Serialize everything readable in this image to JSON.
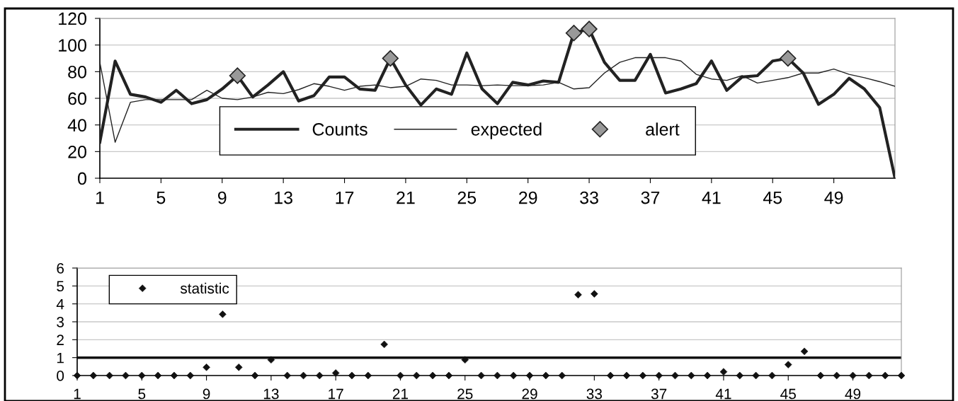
{
  "chart_data": [
    {
      "type": "line",
      "x": [
        1,
        2,
        3,
        4,
        5,
        6,
        7,
        8,
        9,
        10,
        11,
        12,
        13,
        14,
        15,
        16,
        17,
        18,
        19,
        20,
        21,
        22,
        23,
        24,
        25,
        26,
        27,
        28,
        29,
        30,
        31,
        32,
        33,
        34,
        35,
        36,
        37,
        38,
        39,
        40,
        41,
        42,
        43,
        44,
        45,
        46,
        47,
        48,
        49,
        50,
        51,
        52,
        53
      ],
      "xlim": [
        1,
        53
      ],
      "xticks": [
        1,
        5,
        9,
        13,
        17,
        21,
        25,
        29,
        33,
        37,
        41,
        45,
        49
      ],
      "ylim": [
        0,
        120
      ],
      "yticks": [
        0,
        20,
        40,
        60,
        80,
        100,
        120
      ],
      "grid": "y",
      "legend": "bottom",
      "series": [
        {
          "name": "Counts",
          "type": "line",
          "color": "#222222",
          "values": [
            27,
            88,
            63,
            61,
            57,
            66,
            56,
            59,
            67,
            77,
            61,
            70,
            80,
            58,
            62,
            76,
            76,
            67,
            66,
            90,
            70,
            55,
            67,
            63,
            94,
            67,
            56,
            72,
            70,
            73,
            72,
            109,
            112,
            87,
            73.5,
            73.5,
            93,
            64,
            67,
            71,
            88,
            66,
            76,
            77,
            88,
            90,
            79,
            55.5,
            63,
            75,
            67,
            53,
            0
          ]
        },
        {
          "name": "expected",
          "type": "line",
          "color": "#222222",
          "values": [
            87,
            27,
            57,
            59,
            59,
            59,
            59,
            66,
            60,
            59,
            61,
            64.5,
            63.5,
            66.5,
            71,
            69,
            66,
            69,
            70,
            68,
            69,
            74.5,
            73.5,
            70,
            70,
            69.5,
            70,
            69.5,
            69.5,
            70,
            72,
            67,
            68,
            79,
            87,
            90.5,
            90.5,
            90.5,
            88,
            78,
            74.5,
            73.5,
            77,
            71.5,
            73.5,
            75.5,
            79,
            79,
            82,
            78,
            75.5,
            72.5,
            69
          ]
        },
        {
          "name": "alert",
          "type": "scatter",
          "marker": "diamond",
          "color": "#999999",
          "x": [
            10,
            20,
            32,
            33,
            46
          ],
          "values": [
            77,
            90,
            109,
            112,
            90
          ]
        }
      ]
    },
    {
      "type": "scatter",
      "x": [
        1,
        2,
        3,
        4,
        5,
        6,
        7,
        8,
        9,
        10,
        11,
        12,
        13,
        14,
        15,
        16,
        17,
        18,
        19,
        20,
        21,
        22,
        23,
        24,
        25,
        26,
        27,
        28,
        29,
        30,
        31,
        32,
        33,
        34,
        35,
        36,
        37,
        38,
        39,
        40,
        41,
        42,
        43,
        44,
        45,
        46,
        47,
        48,
        49,
        50,
        51,
        52
      ],
      "xlim": [
        1,
        52
      ],
      "xticks": [
        1,
        5,
        9,
        13,
        17,
        21,
        25,
        29,
        33,
        37,
        41,
        45,
        49
      ],
      "ylim": [
        0,
        6
      ],
      "yticks": [
        0,
        1,
        2,
        3,
        4,
        5,
        6
      ],
      "grid": "y",
      "legend": "top left",
      "marker": "diamond",
      "ref_lines": [
        {
          "axis": "y",
          "value": 1,
          "color": "#111111"
        }
      ],
      "series": [
        {
          "name": "statistic",
          "color": "#111111",
          "values": [
            0,
            0,
            0,
            0,
            0,
            0,
            0,
            0,
            0.46,
            3.42,
            0.46,
            0,
            0.88,
            0,
            0,
            0,
            0.14,
            0,
            0,
            1.74,
            0,
            0,
            0,
            0,
            0.88,
            0,
            0,
            0,
            0,
            0,
            0,
            4.51,
            4.56,
            0,
            0,
            0,
            0,
            0,
            0,
            0,
            0.21,
            0,
            0,
            0,
            0.61,
            1.35,
            0,
            0,
            0,
            0,
            0,
            0
          ]
        }
      ]
    }
  ]
}
